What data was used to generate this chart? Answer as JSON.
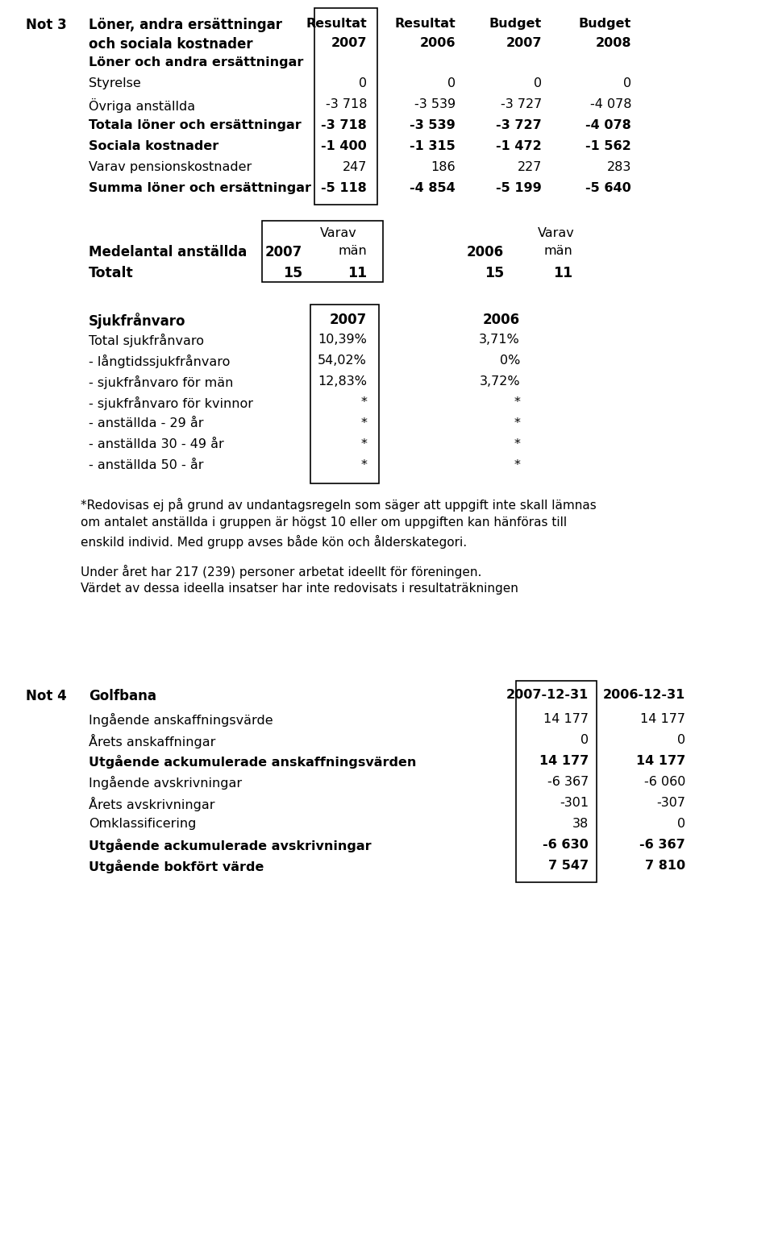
{
  "bg_color": "#ffffff",
  "sections": {
    "not3_label": "Not 3",
    "not3_title_line1": "Löner, andra ersättningar",
    "not3_title_line2": "och sociala kostnader",
    "subsection1": "Löner och andra ersättningar",
    "rows_table1": [
      {
        "label": "Styrelse",
        "bold": false,
        "values": [
          "0",
          "0",
          "0",
          "0"
        ]
      },
      {
        "label": "Övriga anställda",
        "bold": false,
        "values": [
          "-3 718",
          "-3 539",
          "-3 727",
          "-4 078"
        ]
      },
      {
        "label": "Totala löner och ersättningar",
        "bold": true,
        "values": [
          "-3 718",
          "-3 539",
          "-3 727",
          "-4 078"
        ]
      },
      {
        "label": "Sociala kostnader",
        "bold": true,
        "values": [
          "-1 400",
          "-1 315",
          "-1 472",
          "-1 562"
        ]
      },
      {
        "label": "Varav pensionskostnader",
        "bold": false,
        "values": [
          "247",
          "186",
          "227",
          "283"
        ]
      },
      {
        "label": "Summa löner och ersättningar",
        "bold": true,
        "values": [
          "-5 118",
          "-4 854",
          "-5 199",
          "-5 640"
        ]
      }
    ],
    "medel_label": "Medelantal anställda",
    "medel_totalt_label": "Totalt",
    "medel_values": [
      "15",
      "11",
      "15",
      "11"
    ],
    "sjuk_header": "Sjukfrånvaro",
    "sjuk_rows": [
      {
        "label": "Total sjukfrånvaro",
        "bold": false,
        "val2007": "10,39%",
        "val2006": "3,71%"
      },
      {
        "label": "- långtidssjukfrånvaro",
        "bold": false,
        "val2007": "54,02%",
        "val2006": "0%"
      },
      {
        "label": "- sjukfrånvaro för män",
        "bold": false,
        "val2007": "12,83%",
        "val2006": "3,72%"
      },
      {
        "label": "- sjukfrånvaro för kvinnor",
        "bold": false,
        "val2007": "*",
        "val2006": "*"
      },
      {
        "label": "- anställda - 29 år",
        "bold": false,
        "val2007": "*",
        "val2006": "*"
      },
      {
        "label": "- anställda 30 - 49 år",
        "bold": false,
        "val2007": "*",
        "val2006": "*"
      },
      {
        "label": "- anställda 50 - år",
        "bold": false,
        "val2007": "*",
        "val2006": "*"
      }
    ],
    "footnote_lines": [
      "*Redovisas ej på grund av undantagsregeln som säger att uppgift inte skall lämnas",
      "om antalet anställda i gruppen är högst 10 eller om uppgiften kan hänföras till",
      "enskild individ. Med grupp avses både kön och ålderskategori."
    ],
    "extra_lines": [
      "Under året har 217 (239) personer arbetat ideellt för föreningen.",
      "Värdet av dessa ideella insatser har inte redovisats i resultaträkningen"
    ],
    "not4_label": "Not 4",
    "not4_title": "Golfbana",
    "not4_rows": [
      {
        "label": "Ingående anskaffningsvärde",
        "bold": false,
        "val1": "14 177",
        "val2": "14 177"
      },
      {
        "label": "Årets anskaffningar",
        "bold": false,
        "val1": "0",
        "val2": "0"
      },
      {
        "label": "Utgående ackumulerade anskaffningsvärden",
        "bold": true,
        "val1": "14 177",
        "val2": "14 177"
      },
      {
        "label": "Ingående avskrivningar",
        "bold": false,
        "val1": "-6 367",
        "val2": "-6 060"
      },
      {
        "label": "Årets avskrivningar",
        "bold": false,
        "val1": "-301",
        "val2": "-307"
      },
      {
        "label": "Omklassificering",
        "bold": false,
        "val1": "38",
        "val2": "0"
      },
      {
        "label": "Utgående ackumulerade avskrivningar",
        "bold": true,
        "val1": "-6 630",
        "val2": "-6 367"
      },
      {
        "label": "Utgående bokfört värde",
        "bold": true,
        "val1": "7 547",
        "val2": "7 810"
      }
    ]
  }
}
